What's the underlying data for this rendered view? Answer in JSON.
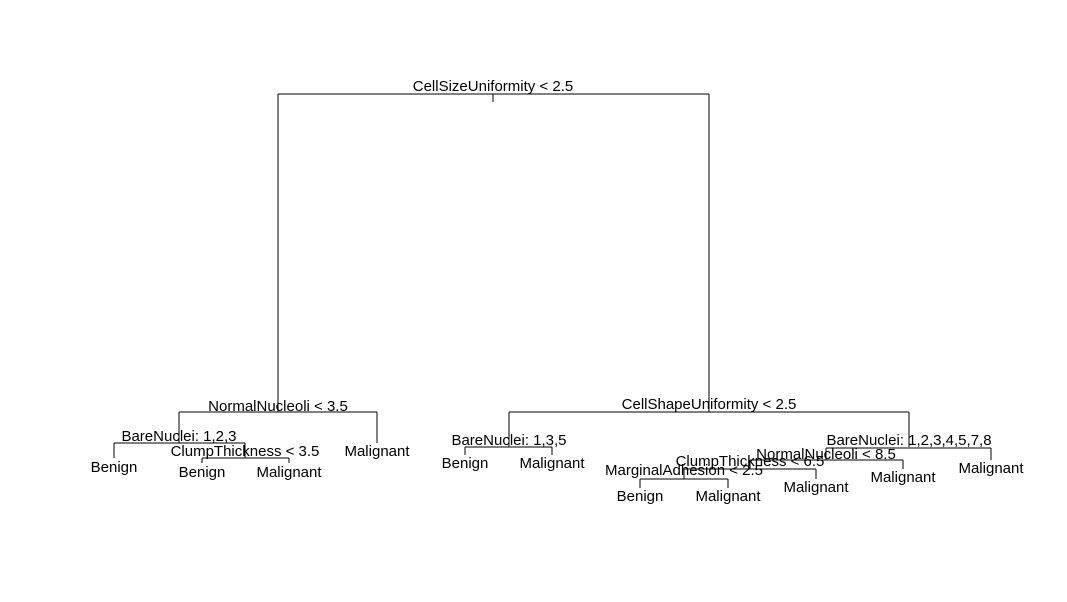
{
  "tree": {
    "splits": {
      "root": "CellSizeUniformity < 2.5",
      "normal_nucleoli_left": "NormalNucleoli < 3.5",
      "bare_nuclei_left": "BareNuclei: 1,2,3",
      "clump_thickness_left": "ClumpThickness < 3.5",
      "cell_shape_uniformity": "CellShapeUniformity < 2.5",
      "bare_nuclei_mid": "BareNuclei: 1,3,5",
      "bare_nuclei_right": "BareNuclei: 1,2,3,4,5,7,8",
      "normal_nucleoli_right": "NormalNucleoli < 8.5",
      "clump_thickness_right": "ClumpThickness < 6.5",
      "marginal_adhesion": "MarginalAdhesion < 2.5"
    },
    "leaves": {
      "l1": "Benign",
      "l2": "Benign",
      "l3": "Malignant",
      "l4": "Malignant",
      "l5": "Benign",
      "l6": "Malignant",
      "l7": "Benign",
      "l8": "Malignant",
      "l9": "Malignant",
      "l10": "Malignant",
      "l11": "Malignant"
    }
  }
}
